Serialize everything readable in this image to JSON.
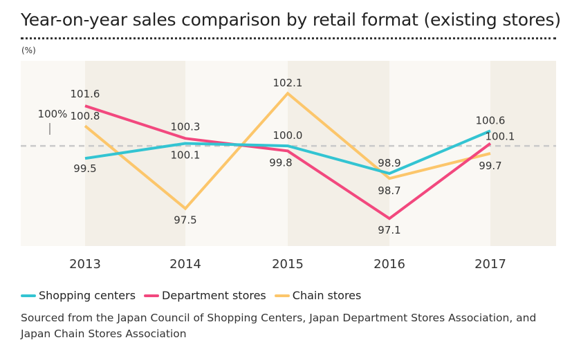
{
  "title": "Year-on-year sales comparison by retail format (existing stores)",
  "chart_data": {
    "type": "line",
    "title": "Year-on-year sales comparison by retail format (existing stores)",
    "ylabel": "(%)",
    "xlabel": "",
    "categories": [
      "2013",
      "2014",
      "2015",
      "2016",
      "2017"
    ],
    "ylim": [
      96.0,
      103.4
    ],
    "reference_line": {
      "value": 100,
      "label": "100%"
    },
    "grid": false,
    "legend_position": "bottom-left",
    "series": [
      {
        "name": "Shopping centers",
        "color": "#33c4d2",
        "values": [
          99.5,
          100.1,
          100.0,
          98.9,
          100.6
        ],
        "labels": [
          "99.5",
          "100.1",
          "100.0",
          "98.9",
          "100.6"
        ]
      },
      {
        "name": "Department stores",
        "color": "#f2487e",
        "values": [
          101.6,
          100.3,
          99.8,
          97.1,
          100.1
        ],
        "labels": [
          "101.6",
          "100.3",
          "99.8",
          "97.1",
          "100.1"
        ]
      },
      {
        "name": "Chain stores",
        "color": "#fcc66b",
        "values": [
          100.8,
          97.5,
          102.1,
          98.7,
          99.7
        ],
        "labels": [
          "100.8",
          "97.5",
          "102.1",
          "98.7",
          "99.7"
        ]
      }
    ]
  },
  "source": "Sourced from the Japan Council of Shopping Centers, Japan Department Stores Association, and Japan Chain Stores Association",
  "colors": {
    "band_light": "#faf8f4",
    "band_dark": "#f3efe7",
    "reference": "#c9c9c9"
  }
}
